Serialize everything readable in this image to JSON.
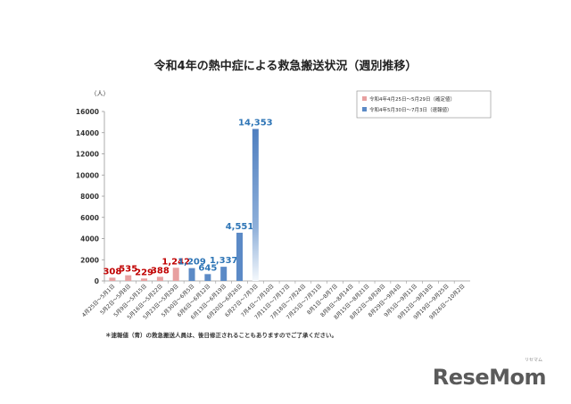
{
  "chart_data": {
    "type": "bar",
    "title": "令和4年の熱中症による救急搬送状況（週別推移）",
    "ylabel": "（人）",
    "ylim": [
      0,
      16000
    ],
    "yticks": [
      0,
      2000,
      4000,
      6000,
      8000,
      10000,
      12000,
      14000,
      16000
    ],
    "categories": [
      "4月25日～5月1日",
      "5月2日～5月8日",
      "5月9日～5月15日",
      "5月16日～5月22日",
      "5月23日～5月29日",
      "5月30日～6月5日",
      "6月6日～6月12日",
      "6月13日～6月19日",
      "6月20日～6月26日",
      "6月27日～7月3日",
      "7月4日～7月10日",
      "7月11日～7月17日",
      "7月18日～7月24日",
      "7月25日～7月31日",
      "8月1日～8月7日",
      "8月8日～8月14日",
      "8月15日～8月21日",
      "8月22日～8月28日",
      "8月29日～9月4日",
      "9月5日～9月11日",
      "9月12日～9月18日",
      "9月19日～9月25日",
      "9月26日～10月2日"
    ],
    "series": [
      {
        "name": "令和4年4月25日～5月29日（確定値）",
        "color": "#e8a0a0",
        "label_color": "#c00000",
        "values": [
          308,
          535,
          229,
          388,
          1242,
          null,
          null,
          null,
          null,
          null,
          null,
          null,
          null,
          null,
          null,
          null,
          null,
          null,
          null,
          null,
          null,
          null,
          null
        ],
        "labels": [
          "308",
          "535",
          "229",
          "388",
          "1,242"
        ]
      },
      {
        "name": "令和4年5月30日～7月3日（速報値）",
        "color": "#5b8ac6",
        "label_color": "#2e75b6",
        "values": [
          null,
          null,
          null,
          null,
          null,
          1209,
          645,
          1337,
          4551,
          14353,
          null,
          null,
          null,
          null,
          null,
          null,
          null,
          null,
          null,
          null,
          null,
          null,
          null
        ],
        "labels": [
          "1,209",
          "645",
          "1,337",
          "4,551",
          "14,353"
        ]
      }
    ],
    "legend_position": "top-right",
    "grid": false
  },
  "footnote": "＊速報値（青）の救急搬送人員は、後日修正されることもありますのでご了承ください。",
  "watermark": "ReseMom",
  "watermark_kana": "リセマム"
}
